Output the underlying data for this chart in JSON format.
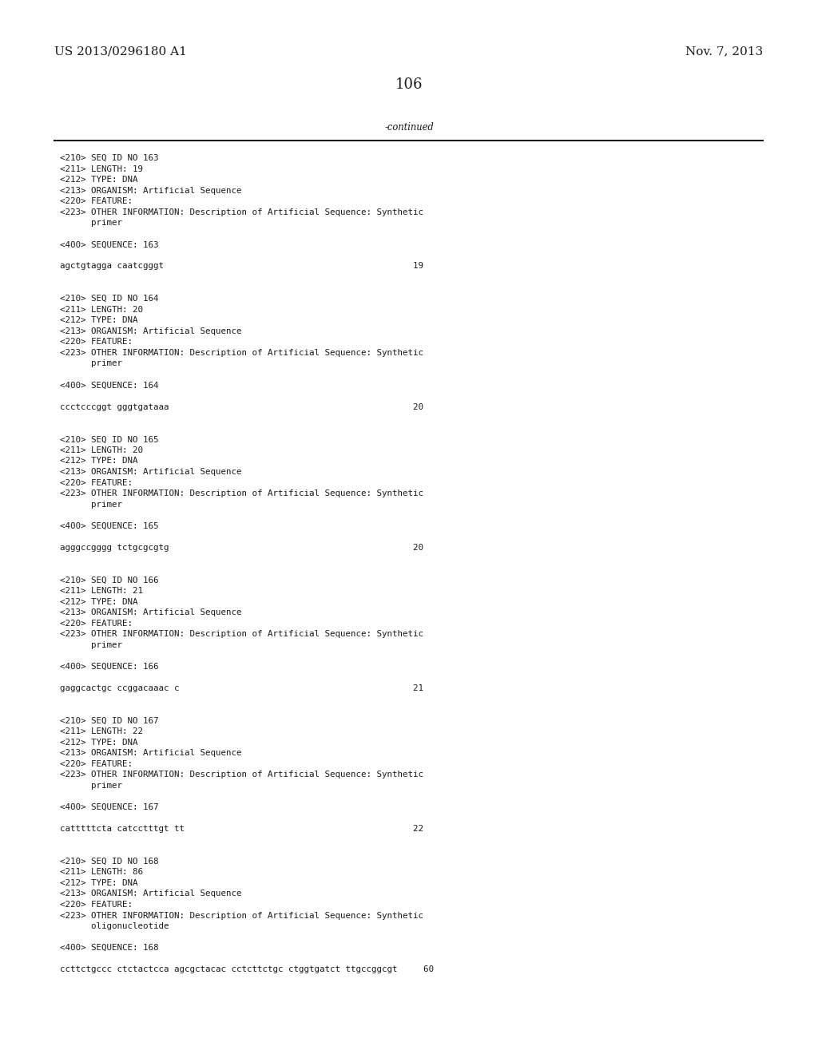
{
  "background_color": "#ffffff",
  "header_left": "US 2013/0296180 A1",
  "header_right": "Nov. 7, 2013",
  "page_number": "106",
  "continued_label": "-continued",
  "header_fontsize": 11,
  "page_num_fontsize": 13,
  "mono_fontsize": 7.8,
  "content": [
    "<210> SEQ ID NO 163",
    "<211> LENGTH: 19",
    "<212> TYPE: DNA",
    "<213> ORGANISM: Artificial Sequence",
    "<220> FEATURE:",
    "<223> OTHER INFORMATION: Description of Artificial Sequence: Synthetic",
    "      primer",
    "",
    "<400> SEQUENCE: 163",
    "",
    "agctgtagga caatcgggt                                                19",
    "",
    "",
    "<210> SEQ ID NO 164",
    "<211> LENGTH: 20",
    "<212> TYPE: DNA",
    "<213> ORGANISM: Artificial Sequence",
    "<220> FEATURE:",
    "<223> OTHER INFORMATION: Description of Artificial Sequence: Synthetic",
    "      primer",
    "",
    "<400> SEQUENCE: 164",
    "",
    "ccctcccggt gggtgataaa                                               20",
    "",
    "",
    "<210> SEQ ID NO 165",
    "<211> LENGTH: 20",
    "<212> TYPE: DNA",
    "<213> ORGANISM: Artificial Sequence",
    "<220> FEATURE:",
    "<223> OTHER INFORMATION: Description of Artificial Sequence: Synthetic",
    "      primer",
    "",
    "<400> SEQUENCE: 165",
    "",
    "agggccgggg tctgcgcgtg                                               20",
    "",
    "",
    "<210> SEQ ID NO 166",
    "<211> LENGTH: 21",
    "<212> TYPE: DNA",
    "<213> ORGANISM: Artificial Sequence",
    "<220> FEATURE:",
    "<223> OTHER INFORMATION: Description of Artificial Sequence: Synthetic",
    "      primer",
    "",
    "<400> SEQUENCE: 166",
    "",
    "gaggcactgc ccggacaaac c                                             21",
    "",
    "",
    "<210> SEQ ID NO 167",
    "<211> LENGTH: 22",
    "<212> TYPE: DNA",
    "<213> ORGANISM: Artificial Sequence",
    "<220> FEATURE:",
    "<223> OTHER INFORMATION: Description of Artificial Sequence: Synthetic",
    "      primer",
    "",
    "<400> SEQUENCE: 167",
    "",
    "catttttcta catcctttgt tt                                            22",
    "",
    "",
    "<210> SEQ ID NO 168",
    "<211> LENGTH: 86",
    "<212> TYPE: DNA",
    "<213> ORGANISM: Artificial Sequence",
    "<220> FEATURE:",
    "<223> OTHER INFORMATION: Description of Artificial Sequence: Synthetic",
    "      oligonucleotide",
    "",
    "<400> SEQUENCE: 168",
    "",
    "ccttctgccc ctctactcca agcgctacac cctcttctgc ctggtgatct ttgccggcgt     60"
  ]
}
